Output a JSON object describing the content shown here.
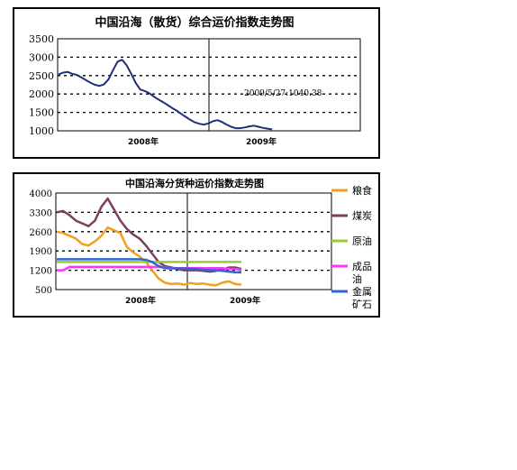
{
  "chart_data": [
    {
      "type": "line",
      "title": "中国沿海（散货）综合运价指数走势图",
      "x_labels": [
        "2008年",
        "2009年"
      ],
      "y_ticks": [
        3500,
        3000,
        2500,
        2000,
        1500,
        1000
      ],
      "ylim": [
        1000,
        3500
      ],
      "grid": "dotted horizontal",
      "annotation": "2009/5/27:1040.38",
      "series": [
        {
          "color": "#1f2f7a",
          "values": [
            2530,
            2580,
            2600,
            2550,
            2520,
            2450,
            2380,
            2310,
            2250,
            2220,
            2260,
            2400,
            2650,
            2880,
            2930,
            2780,
            2550,
            2300,
            2120,
            2080,
            2020,
            1930,
            1850,
            1780,
            1700,
            1620,
            1550,
            1460,
            1380,
            1300,
            1230,
            1190,
            1170,
            1200,
            1260,
            1290,
            1240,
            1170,
            1110,
            1070,
            1070,
            1090,
            1120,
            1140,
            1110,
            1080,
            1060,
            1040
          ]
        }
      ]
    },
    {
      "type": "line",
      "title": "中国沿海分货种运价指数走势图",
      "x_labels": [
        "2008年",
        "2009年"
      ],
      "y_ticks": [
        4000,
        3300,
        2600,
        1900,
        1200,
        500
      ],
      "ylim": [
        500,
        4000
      ],
      "grid": "dotted horizontal",
      "legend_position": "right",
      "series": [
        {
          "name": "粮食",
          "color": "#f0a020",
          "values": [
            2600,
            2550,
            2450,
            2350,
            2150,
            2100,
            2250,
            2450,
            2750,
            2650,
            2550,
            2050,
            1850,
            1700,
            1500,
            1200,
            900,
            750,
            700,
            720,
            680,
            740,
            700,
            720,
            680,
            650,
            750,
            800,
            700,
            680
          ]
        },
        {
          "name": "煤炭",
          "color": "#7b3f5f",
          "values": [
            3300,
            3350,
            3200,
            3000,
            2900,
            2800,
            3000,
            3500,
            3800,
            3400,
            3000,
            2700,
            2500,
            2350,
            2100,
            1800,
            1500,
            1350,
            1300,
            1250,
            1200,
            1200,
            1200,
            1180,
            1150,
            1180,
            1220,
            1300,
            1300,
            1250
          ]
        },
        {
          "name": "原油",
          "color": "#99cc33",
          "values": [
            1500,
            1500,
            1500,
            1500,
            1500,
            1500,
            1500,
            1500,
            1500,
            1500,
            1500,
            1500,
            1500,
            1500,
            1500,
            1500,
            1500,
            1500,
            1500,
            1500,
            1500,
            1500,
            1500,
            1500,
            1500,
            1500,
            1500,
            1500,
            1500,
            1500
          ]
        },
        {
          "name": "成品油",
          "color": "#ff33ff",
          "values": [
            1200,
            1200,
            1320,
            1320,
            1320,
            1320,
            1320,
            1320,
            1320,
            1320,
            1320,
            1320,
            1320,
            1320,
            1320,
            1320,
            1320,
            1300,
            1280,
            1280,
            1280,
            1280,
            1280,
            1280,
            1280,
            1280,
            1280,
            1250,
            1250,
            1220
          ]
        },
        {
          "name": "金属矿石",
          "color": "#3366cc",
          "values": [
            1600,
            1600,
            1600,
            1600,
            1600,
            1600,
            1600,
            1600,
            1600,
            1600,
            1600,
            1600,
            1600,
            1600,
            1580,
            1500,
            1350,
            1280,
            1270,
            1270,
            1270,
            1260,
            1250,
            1220,
            1200,
            1200,
            1180,
            1150,
            1130,
            1120
          ]
        }
      ]
    }
  ]
}
